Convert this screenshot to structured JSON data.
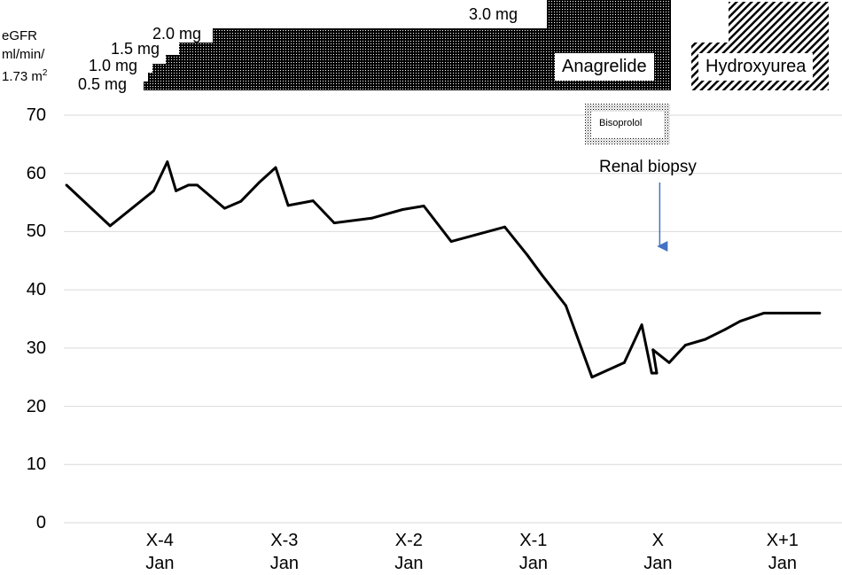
{
  "chart_data": {
    "type": "line",
    "ylabel": {
      "line1": "eGFR",
      "line2": "ml/min/",
      "line3": "1.73 m",
      "sup": "2"
    },
    "ylim": [
      0,
      70
    ],
    "ytick_values": [
      0,
      10,
      20,
      30,
      40,
      50,
      60,
      70
    ],
    "ytick_labels": [
      "0",
      "10",
      "20",
      "30",
      "40",
      "50",
      "60",
      "70"
    ],
    "xlim": [
      -4.75,
      1.3
    ],
    "xticks": [
      {
        "value": -4,
        "line1": "X-4",
        "line2": "Jan"
      },
      {
        "value": -3,
        "line1": "X-3",
        "line2": "Jan"
      },
      {
        "value": -2,
        "line1": "X-2",
        "line2": "Jan"
      },
      {
        "value": -1,
        "line1": "X-1",
        "line2": "Jan"
      },
      {
        "value": 0,
        "line1": "X",
        "line2": "Jan"
      },
      {
        "value": 1,
        "line1": "X+1",
        "line2": "Jan"
      }
    ],
    "grid": "horizontal",
    "series": [
      {
        "name": "eGFR",
        "color": "#000000",
        "x": [
          -4.75,
          -4.4,
          -4.05,
          -3.94,
          -3.87,
          -3.77,
          -3.7,
          -3.59,
          -3.48,
          -3.35,
          -3.2,
          -3.07,
          -2.97,
          -2.77,
          -2.6,
          -2.3,
          -2.05,
          -1.88,
          -1.66,
          -1.23,
          -1.05,
          -0.93,
          -0.74,
          -0.53,
          -0.27,
          -0.13,
          -0.05,
          -0.01,
          -0.04,
          0.09,
          0.22,
          0.38,
          0.54,
          0.66,
          0.85,
          1.0,
          1.3
        ],
        "values": [
          58,
          51,
          57,
          62,
          57,
          58,
          58,
          56,
          54,
          55.2,
          58.5,
          61,
          54.5,
          55.3,
          51.5,
          52.3,
          53.8,
          54.4,
          48.3,
          50.8,
          46,
          42.5,
          37.3,
          25,
          27.5,
          34,
          25.7,
          25.7,
          29.7,
          27.5,
          30.5,
          31.5,
          33.2,
          34.6,
          36,
          36,
          36
        ]
      }
    ],
    "dosing": {
      "title": "Anagrelide",
      "levels": [
        "0.5 mg",
        "1.0 mg",
        "1.5 mg",
        "2.0 mg",
        "3.0 mg"
      ]
    },
    "treatments": [
      {
        "name": "Anagrelide",
        "pattern": "dense-dots"
      },
      {
        "name": "Hydroxyurea",
        "pattern": "diagonal-hatch"
      },
      {
        "name": "Bisoprolol",
        "pattern": "fine-dots"
      }
    ],
    "annotations": [
      {
        "text": "Renal biopsy",
        "x": 0.0,
        "arrow_color": "#4472C4"
      }
    ]
  }
}
